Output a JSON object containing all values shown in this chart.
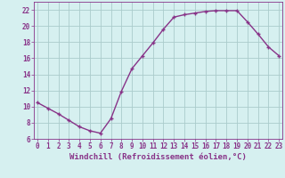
{
  "x": [
    0,
    1,
    2,
    3,
    4,
    5,
    6,
    7,
    8,
    9,
    10,
    11,
    12,
    13,
    14,
    15,
    16,
    17,
    18,
    19,
    20,
    21,
    22,
    23
  ],
  "y": [
    10.5,
    9.8,
    9.1,
    8.3,
    7.5,
    7.0,
    6.7,
    8.5,
    11.9,
    14.7,
    16.3,
    17.9,
    19.6,
    21.1,
    21.4,
    21.6,
    21.8,
    21.9,
    21.9,
    21.9,
    20.5,
    19.0,
    17.4,
    16.3
  ],
  "line_color": "#883388",
  "marker": "+",
  "markersize": 3.5,
  "linewidth": 1.0,
  "xlabel": "Windchill (Refroidissement éolien,°C)",
  "xlabel_fontsize": 6.5,
  "bg_color": "#d6f0f0",
  "grid_color": "#aacccc",
  "tick_color": "#883388",
  "tick_fontsize": 5.5,
  "ylim": [
    6,
    23
  ],
  "yticks": [
    6,
    8,
    10,
    12,
    14,
    16,
    18,
    20,
    22
  ],
  "xticks": [
    0,
    1,
    2,
    3,
    4,
    5,
    6,
    7,
    8,
    9,
    10,
    11,
    12,
    13,
    14,
    15,
    16,
    17,
    18,
    19,
    20,
    21,
    22,
    23
  ],
  "xlim": [
    -0.3,
    23.3
  ]
}
